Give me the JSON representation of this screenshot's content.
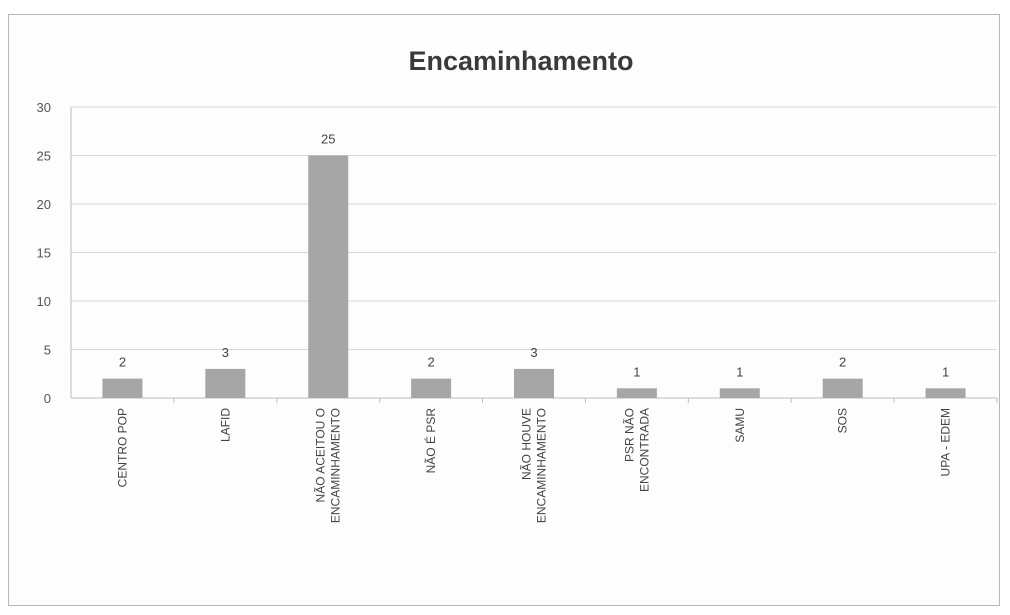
{
  "chart_data": {
    "type": "bar",
    "title": "Encaminhamento",
    "categories": [
      [
        "CENTRO POP"
      ],
      [
        "LAFID"
      ],
      [
        "NÃO ACEITOU O",
        "ENCAMINHAMENTO"
      ],
      [
        "NÃO É PSR"
      ],
      [
        "NÃO HOUVE",
        "ENCAMINHAMENTO"
      ],
      [
        "PSR NÃO",
        "ENCONTRADA"
      ],
      [
        "SAMU"
      ],
      [
        "SOS"
      ],
      [
        "UPA - EDEM"
      ]
    ],
    "values": [
      2,
      3,
      25,
      2,
      3,
      1,
      1,
      2,
      1
    ],
    "ylim": [
      0,
      30
    ],
    "yticks": [
      0,
      5,
      10,
      15,
      20,
      25,
      30
    ],
    "grid": true,
    "legend": "none",
    "bar_color": "#a6a6a6",
    "grid_color": "#d9d9d9"
  }
}
